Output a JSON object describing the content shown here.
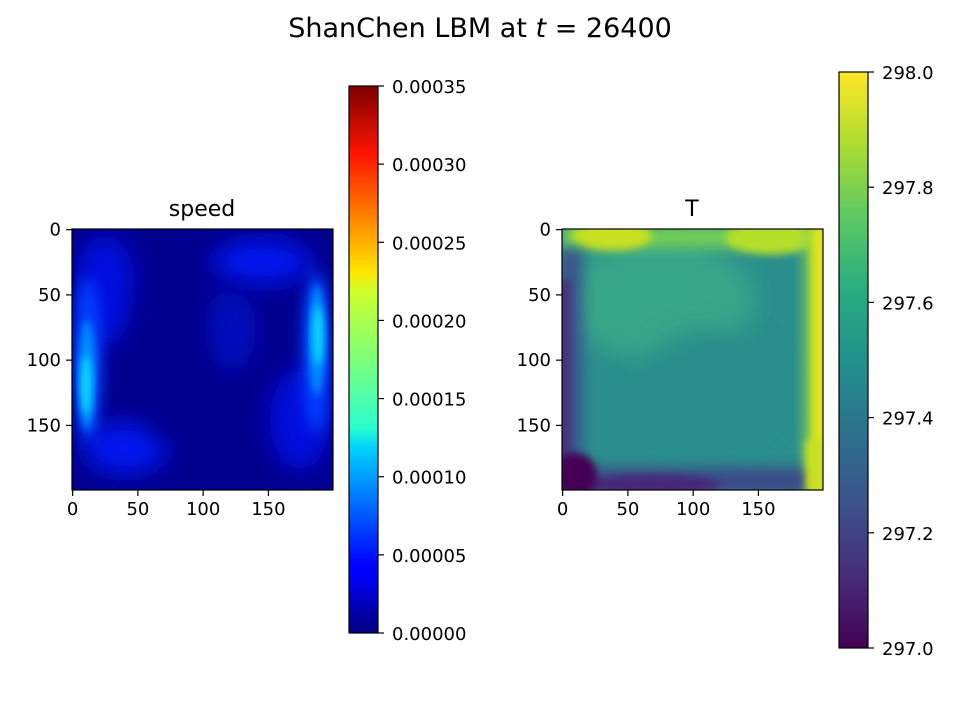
{
  "figure": {
    "title_prefix": "ShanChen LBM at ",
    "title_var": "t",
    "title_suffix": " = 26400"
  },
  "chart_data": [
    {
      "type": "heatmap",
      "title": "speed",
      "grid_shape": [
        200,
        200
      ],
      "xlim": [
        0,
        199
      ],
      "ylim": [
        199,
        0
      ],
      "xticks": [
        "0",
        "50",
        "100",
        "150"
      ],
      "yticks": [
        "0",
        "50",
        "100",
        "150"
      ],
      "colormap": "jet",
      "colorbar": {
        "range": [
          0.0,
          0.00035
        ],
        "ticks": [
          "0.00000",
          "0.00005",
          "0.00010",
          "0.00015",
          "0.00020",
          "0.00025",
          "0.00030",
          "0.00035"
        ]
      },
      "features": [
        {
          "desc": "left wall jet",
          "x": 12,
          "y": 105,
          "peak": 0.00013
        },
        {
          "desc": "right wall jet",
          "x": 186,
          "y": 90,
          "peak": 0.00013
        },
        {
          "desc": "bottom-left swirl",
          "x": 40,
          "y": 175,
          "peak": 6e-05
        },
        {
          "desc": "top-right swirl",
          "x": 150,
          "y": 25,
          "peak": 6e-05
        }
      ],
      "background_value": 1e-05
    },
    {
      "type": "heatmap",
      "title": "T",
      "grid_shape": [
        200,
        200
      ],
      "xlim": [
        0,
        199
      ],
      "ylim": [
        199,
        0
      ],
      "xticks": [
        "0",
        "50",
        "100",
        "150"
      ],
      "yticks": [
        "0",
        "50",
        "100",
        "150"
      ],
      "colormap": "viridis",
      "colorbar": {
        "range": [
          297.0,
          298.0
        ],
        "ticks": [
          "297.0",
          "297.2",
          "297.4",
          "297.6",
          "297.8",
          "298.0"
        ]
      },
      "features": [
        {
          "desc": "hot top edge",
          "value": 297.95
        },
        {
          "desc": "hot right edge",
          "value": 298.0
        },
        {
          "desc": "cold left edge",
          "value": 297.1
        },
        {
          "desc": "cold bottom edge",
          "value": 297.15
        },
        {
          "desc": "interior",
          "value": 297.55
        }
      ]
    }
  ]
}
